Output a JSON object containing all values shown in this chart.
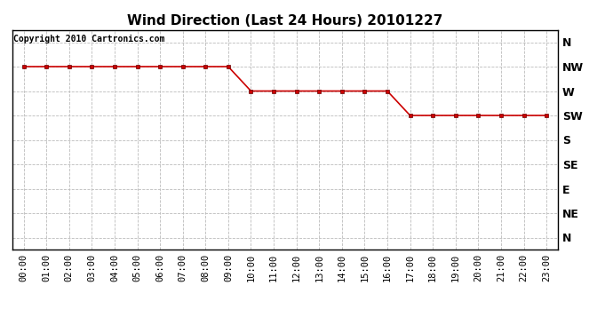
{
  "title": "Wind Direction (Last 24 Hours) 20101227",
  "copyright_text": "Copyright 2010 Cartronics.com",
  "background_color": "#ffffff",
  "plot_bg_color": "#ffffff",
  "grid_color": "#bbbbbb",
  "line_color": "#cc0000",
  "marker_color": "#cc0000",
  "hours": [
    0,
    1,
    2,
    3,
    4,
    5,
    6,
    7,
    8,
    9,
    10,
    11,
    12,
    13,
    14,
    15,
    16,
    17,
    18,
    19,
    20,
    21,
    22,
    23
  ],
  "hour_labels": [
    "00:00",
    "01:00",
    "02:00",
    "03:00",
    "04:00",
    "05:00",
    "06:00",
    "07:00",
    "08:00",
    "09:00",
    "10:00",
    "11:00",
    "12:00",
    "13:00",
    "14:00",
    "15:00",
    "16:00",
    "17:00",
    "18:00",
    "19:00",
    "20:00",
    "21:00",
    "22:00",
    "23:00"
  ],
  "directions": [
    "N",
    "NW",
    "W",
    "SW",
    "S",
    "SE",
    "E",
    "NE",
    "N"
  ],
  "direction_values": [
    8,
    7,
    6,
    5,
    4,
    3,
    2,
    1,
    0
  ],
  "wind_data": [
    7,
    7,
    7,
    7,
    7,
    7,
    7,
    7,
    7,
    7,
    6,
    6,
    6,
    6,
    6,
    6,
    6,
    5,
    5,
    5,
    5,
    5,
    5,
    5
  ],
  "title_fontsize": 11,
  "copyright_fontsize": 7,
  "tick_fontsize": 7.5,
  "ytick_fontsize": 9
}
